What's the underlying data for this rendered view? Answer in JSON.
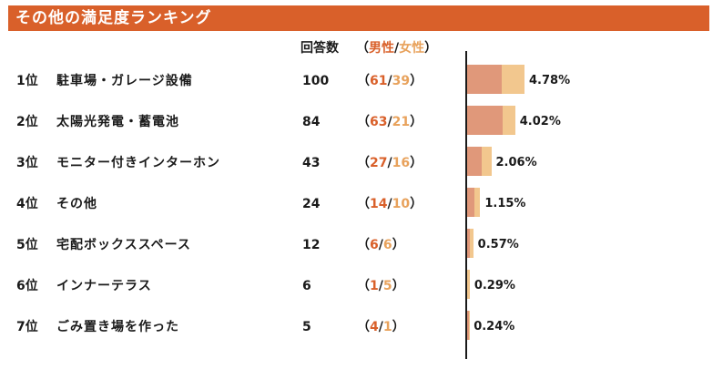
{
  "title": "その他の満足度ランキング",
  "header": {
    "count_label": "回答数",
    "open": "（",
    "male_label": "男性",
    "sep": "/",
    "female_label": "女性",
    "close": "）"
  },
  "colors": {
    "title_bg": "#d9602a",
    "male": "#e0987a",
    "female": "#f2c78e",
    "male_text": "#d9602a",
    "female_text": "#e8a25c"
  },
  "chart_data": {
    "type": "bar",
    "categories": [
      "駐車場・ガレージ設備",
      "太陽光発電・蓄電池",
      "モニター付きインターホン",
      "その他",
      "宅配ボックススペース",
      "インナーテラス",
      "ごみ置き場を作った"
    ],
    "ranks": [
      "1位",
      "2位",
      "3位",
      "4位",
      "5位",
      "6位",
      "7位"
    ],
    "counts": [
      100,
      84,
      43,
      24,
      12,
      6,
      5
    ],
    "series": [
      {
        "name": "男性",
        "values": [
          61,
          63,
          27,
          14,
          6,
          1,
          4
        ]
      },
      {
        "name": "女性",
        "values": [
          39,
          21,
          16,
          10,
          6,
          5,
          1
        ]
      }
    ],
    "percent_labels": [
      "4.78%",
      "4.02%",
      "2.06%",
      "1.15%",
      "0.57%",
      "0.29%",
      "0.24%"
    ],
    "values": [
      4.78,
      4.02,
      2.06,
      1.15,
      0.57,
      0.29,
      0.24
    ]
  }
}
